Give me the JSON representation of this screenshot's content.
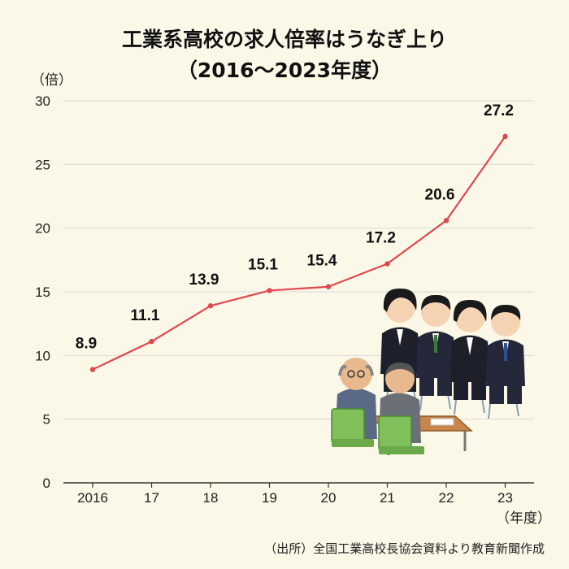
{
  "title": {
    "line1": "工業系高校の求人倍率はうなぎ上り",
    "line2": "（2016～2023年度）"
  },
  "source_note": "（出所）全国工業高校長協会資料より教育新聞作成",
  "colors": {
    "background": "#fbf8e8",
    "line": "#e0484e",
    "grid": "#d9d9d9"
  },
  "chart_data": {
    "type": "line",
    "title": "工業系高校の求人倍率はうなぎ上り（2016～2023年度）",
    "ylabel": "（倍）",
    "xlabel": "（年度）",
    "categories": [
      "2016",
      "17",
      "18",
      "19",
      "20",
      "21",
      "22",
      "23"
    ],
    "values": [
      8.9,
      11.1,
      13.9,
      15.1,
      15.4,
      17.2,
      20.6,
      27.2
    ],
    "value_labels": [
      "8.9",
      "11.1",
      "13.9",
      "15.1",
      "15.4",
      "17.2",
      "20.6",
      "27.2"
    ],
    "ylim": [
      0,
      30
    ],
    "yticks": [
      "0",
      "5",
      "10",
      "15",
      "20",
      "25",
      "30"
    ],
    "grid": true,
    "legend": "none"
  },
  "illustration": "job-interview-illustration"
}
